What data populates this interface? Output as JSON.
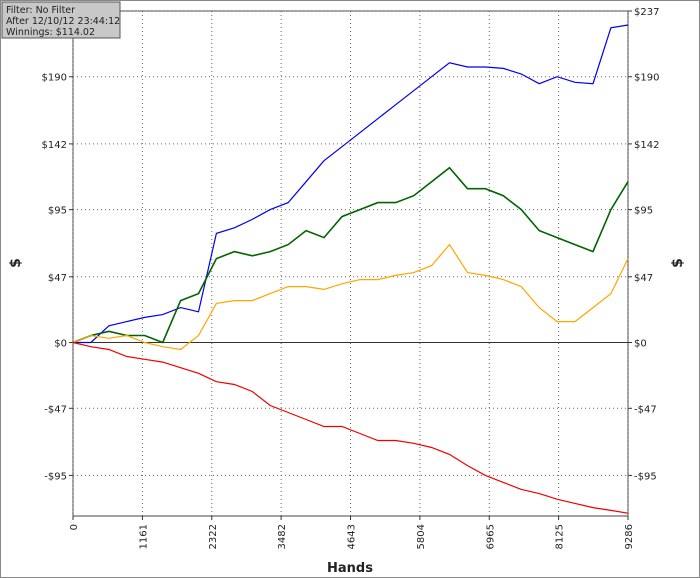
{
  "info": [
    "Filter: No Filter",
    "After 12/10/12 23:44:12",
    "Winnings: $114.02"
  ],
  "chart_data": {
    "type": "line",
    "xlabel": "Hands",
    "ylabel": "$",
    "x": [
      0,
      300,
      600,
      900,
      1200,
      1500,
      1800,
      2100,
      2400,
      2700,
      3000,
      3300,
      3600,
      3900,
      4200,
      4500,
      4800,
      5100,
      5400,
      5700,
      6000,
      6300,
      6600,
      6900,
      7200,
      7500,
      7800,
      8100,
      8400,
      8700,
      9000,
      9286
    ],
    "series": [
      {
        "color": "#0000ee",
        "values": [
          0,
          0,
          12,
          15,
          18,
          20,
          25,
          22,
          78,
          82,
          88,
          95,
          100,
          115,
          130,
          140,
          150,
          160,
          170,
          180,
          190,
          200,
          197,
          197,
          196,
          192,
          185,
          190,
          186,
          185,
          225,
          227
        ]
      },
      {
        "color": "#006400",
        "values": [
          0,
          5,
          8,
          5,
          5,
          0,
          30,
          35,
          60,
          65,
          62,
          65,
          70,
          80,
          75,
          90,
          95,
          100,
          100,
          105,
          115,
          125,
          110,
          110,
          105,
          95,
          80,
          75,
          70,
          65,
          95,
          115
        ]
      },
      {
        "color": "#ffa500",
        "values": [
          0,
          5,
          3,
          5,
          0,
          -3,
          -5,
          5,
          28,
          30,
          30,
          35,
          40,
          40,
          38,
          42,
          45,
          45,
          48,
          50,
          55,
          70,
          50,
          48,
          45,
          40,
          25,
          15,
          15,
          25,
          35,
          60
        ]
      },
      {
        "color": "#ee0000",
        "values": [
          0,
          -3,
          -5,
          -10,
          -12,
          -14,
          -18,
          -22,
          -28,
          -30,
          -35,
          -45,
          -50,
          -55,
          -60,
          -60,
          -65,
          -70,
          -70,
          -72,
          -75,
          -80,
          -88,
          -95,
          -100,
          -105,
          -108,
          -112,
          -115,
          -118,
          -120,
          -122
        ]
      }
    ],
    "xlim": [
      0,
      9286
    ],
    "xticks": [
      0,
      1161,
      2322,
      3482,
      4643,
      5804,
      6965,
      8125,
      9286
    ],
    "ylim": [
      -124,
      237
    ],
    "yticks": [
      {
        "value": -95,
        "label": "-$95"
      },
      {
        "value": -47,
        "label": "-$47"
      },
      {
        "value": 0,
        "label": "$0"
      },
      {
        "value": 47,
        "label": "$47"
      },
      {
        "value": 95,
        "label": "$95"
      },
      {
        "value": 142,
        "label": "$142"
      },
      {
        "value": 190,
        "label": "$190"
      },
      {
        "value": 237,
        "label": "$237"
      }
    ],
    "grid": true
  }
}
